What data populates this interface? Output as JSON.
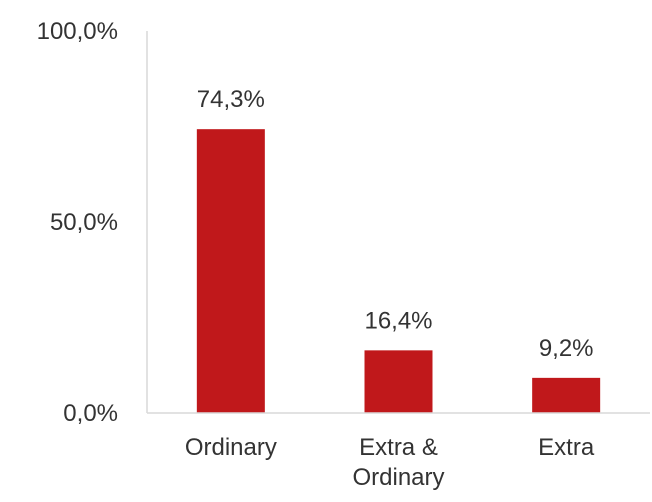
{
  "chart_data": {
    "type": "bar",
    "categories": [
      [
        "Ordinary"
      ],
      [
        "Extra &",
        "Ordinary"
      ],
      [
        "Extra"
      ]
    ],
    "values": [
      74.3,
      16.4,
      9.2
    ],
    "data_labels": [
      "74,3%",
      "16,4%",
      "9,2%"
    ],
    "yticks": [
      {
        "value": 0,
        "label": "0,0%"
      },
      {
        "value": 50,
        "label": "50,0%"
      },
      {
        "value": 100,
        "label": "100,0%"
      }
    ],
    "ylim": [
      0,
      100
    ],
    "grid": false,
    "colors": {
      "bar": "#c0181b",
      "axis": "#d9d9d9",
      "text": "#333333"
    }
  }
}
